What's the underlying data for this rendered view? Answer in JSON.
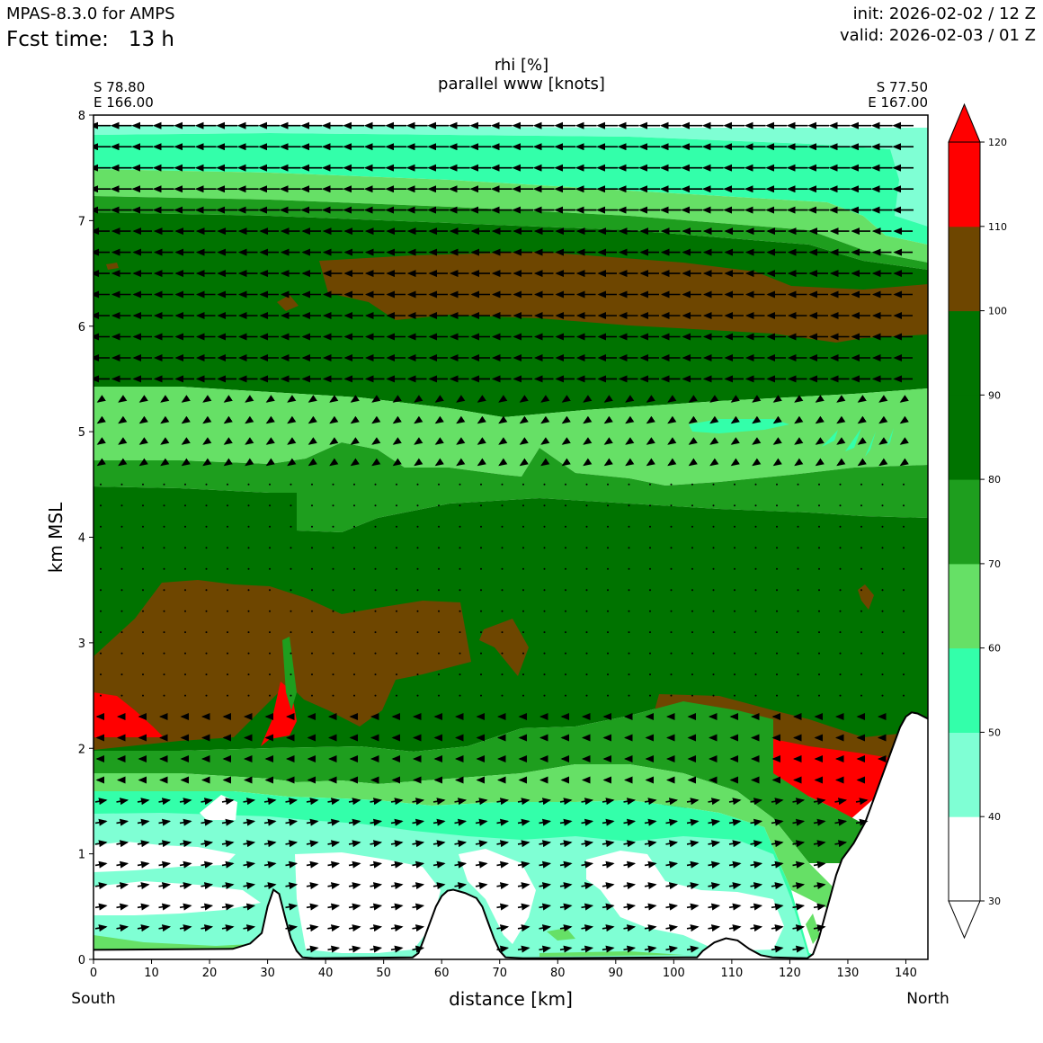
{
  "header": {
    "model": "MPAS-8.3.0 for AMPS",
    "fcst_label": "Fcst time:",
    "fcst_value": "13 h",
    "init": "init: 2026-02-02 / 12 Z",
    "valid": "valid: 2026-02-03 / 01 Z"
  },
  "chart_data": {
    "type": "contourf",
    "title": "rhi [%]",
    "subtitle": "parallel www [knots]",
    "xlabel": "distance [km]",
    "ylabel": "km MSL",
    "xlim": [
      0,
      143.8
    ],
    "ylim": [
      0,
      8
    ],
    "x_ticks": [
      0,
      10,
      20,
      30,
      40,
      50,
      60,
      70,
      80,
      90,
      100,
      110,
      120,
      130,
      140
    ],
    "y_ticks": [
      0,
      1,
      2,
      3,
      4,
      5,
      6,
      7,
      8
    ],
    "left_end": {
      "direction": "South",
      "lat": "S 78.80",
      "lon": "E 166.00"
    },
    "right_end": {
      "direction": "North",
      "lat": "S 77.50",
      "lon": "E 167.00"
    },
    "colorbar": {
      "levels": [
        30,
        40,
        50,
        60,
        70,
        80,
        90,
        100,
        110,
        120
      ],
      "colors": [
        "#ffffff",
        "#7fffd4",
        "#33ffaa",
        "#66e066",
        "#1e9e1e",
        "#007300",
        "#007300",
        "#6e4600",
        "#ff0000"
      ],
      "extend": "both"
    },
    "terrain_km": [
      [
        0,
        0.09
      ],
      [
        24,
        0.1
      ],
      [
        27,
        0.15
      ],
      [
        29,
        0.25
      ],
      [
        30,
        0.5
      ],
      [
        31,
        0.66
      ],
      [
        32,
        0.62
      ],
      [
        33,
        0.4
      ],
      [
        34,
        0.2
      ],
      [
        35,
        0.08
      ],
      [
        36,
        0.02
      ],
      [
        38,
        0.01
      ],
      [
        55,
        0.02
      ],
      [
        56,
        0.06
      ],
      [
        57,
        0.2
      ],
      [
        58,
        0.35
      ],
      [
        59,
        0.5
      ],
      [
        60,
        0.6
      ],
      [
        61,
        0.65
      ],
      [
        62,
        0.66
      ],
      [
        64,
        0.63
      ],
      [
        66,
        0.58
      ],
      [
        67,
        0.5
      ],
      [
        68,
        0.35
      ],
      [
        69,
        0.2
      ],
      [
        70,
        0.08
      ],
      [
        71,
        0.02
      ],
      [
        74,
        0.01
      ],
      [
        104,
        0.02
      ],
      [
        105,
        0.08
      ],
      [
        107,
        0.16
      ],
      [
        109,
        0.2
      ],
      [
        111,
        0.18
      ],
      [
        113,
        0.1
      ],
      [
        115,
        0.04
      ],
      [
        117,
        0.02
      ],
      [
        123,
        0.01
      ],
      [
        124,
        0.05
      ],
      [
        125,
        0.2
      ],
      [
        126,
        0.4
      ],
      [
        127,
        0.6
      ],
      [
        128,
        0.8
      ],
      [
        129,
        0.95
      ],
      [
        131,
        1.1
      ],
      [
        133,
        1.3
      ],
      [
        135,
        1.6
      ],
      [
        137,
        1.9
      ],
      [
        139,
        2.2
      ],
      [
        140,
        2.3
      ],
      [
        141,
        2.34
      ],
      [
        142,
        2.33
      ],
      [
        143.8,
        2.28
      ]
    ],
    "wind_rows_km": [
      7.9,
      7.7,
      7.5,
      7.3,
      7.1,
      6.9,
      6.7,
      6.5,
      6.3,
      6.1,
      5.9,
      5.7,
      5.5,
      5.3,
      5.1,
      4.9,
      4.7,
      4.5,
      4.3,
      4.1,
      3.9,
      3.7,
      3.5,
      3.3,
      3.1,
      2.9,
      2.7,
      2.5,
      2.3,
      2.1,
      1.9,
      1.7,
      1.5,
      1.3,
      1.1,
      0.9,
      0.7,
      0.5,
      0.3,
      0.1
    ]
  }
}
